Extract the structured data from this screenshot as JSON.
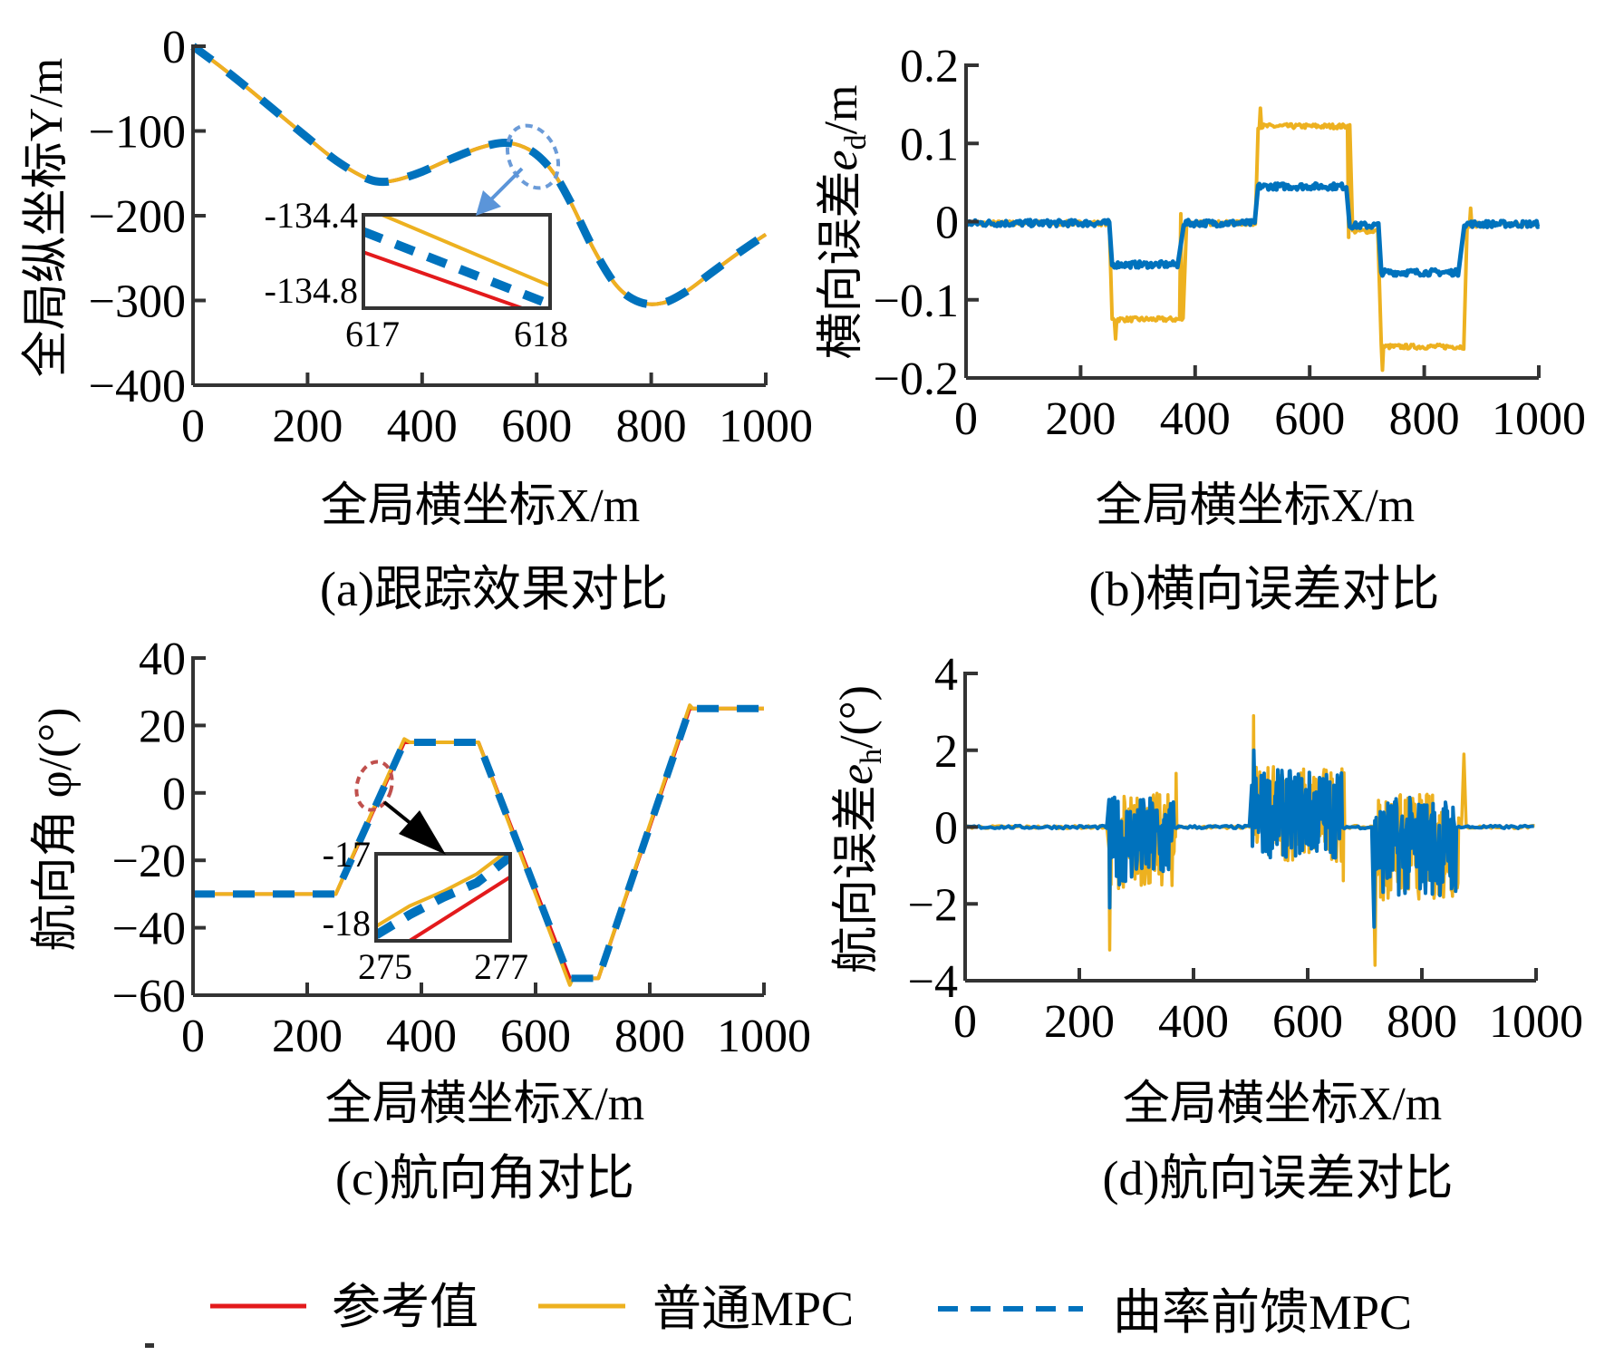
{
  "colors": {
    "reference": "#e31a1c",
    "normal_mpc": "#edb120",
    "curvature_mpc": "#0072bd",
    "axis": "#333333",
    "ellipse_a": "#6b9bd8",
    "arrow_a": "#5b95d9",
    "ellipse_c": "#c0504d",
    "arrow_c": "#000000"
  },
  "legend": {
    "items": [
      {
        "label": "参考值",
        "style": "solid",
        "color_key": "reference"
      },
      {
        "label": "普通MPC",
        "style": "solid",
        "color_key": "normal_mpc"
      },
      {
        "label": "曲率前馈MPC",
        "style": "dashed",
        "color_key": "curvature_mpc"
      }
    ],
    "placement": "bottom-center"
  },
  "chart_data": [
    {
      "id": "a",
      "type": "line",
      "caption": "(a)跟踪效果对比",
      "xlabel": "全局横坐标X/m",
      "ylabel": "全局纵坐标Y/m",
      "xlim": [
        0,
        1000
      ],
      "ylim": [
        -400,
        0
      ],
      "xticks": [
        0,
        200,
        400,
        600,
        800,
        1000
      ],
      "xtick_labels": [
        "0",
        "200",
        "400",
        "600",
        "800",
        "1000"
      ],
      "yticks": [
        0,
        -100,
        -200,
        -300,
        -400
      ],
      "ytick_labels": [
        "0",
        "−100",
        "−200",
        "−300",
        "−400"
      ],
      "grid": false,
      "series": [
        {
          "name": "参考值",
          "color_key": "reference",
          "style": "solid",
          "x": [
            0,
            50,
            100,
            150,
            200,
            250,
            300,
            330,
            360,
            400,
            450,
            500,
            540,
            570,
            600,
            630,
            660,
            700,
            740,
            780,
            820,
            860,
            900,
            950,
            1000
          ],
          "y": [
            0,
            -25,
            -52,
            -80,
            -108,
            -135,
            -155,
            -160,
            -157,
            -148,
            -133,
            -120,
            -114,
            -117,
            -128,
            -150,
            -185,
            -240,
            -283,
            -302,
            -303,
            -290,
            -270,
            -245,
            -222
          ]
        },
        {
          "name": "普通MPC",
          "color_key": "normal_mpc",
          "style": "solid",
          "x": [
            0,
            50,
            100,
            150,
            200,
            250,
            300,
            330,
            360,
            400,
            450,
            500,
            540,
            570,
            600,
            630,
            660,
            700,
            740,
            780,
            820,
            860,
            900,
            950,
            1000
          ],
          "y": [
            0,
            -25,
            -52,
            -80,
            -108,
            -135,
            -155,
            -160,
            -157,
            -148,
            -133,
            -120,
            -114,
            -117,
            -128,
            -150,
            -185,
            -240,
            -283,
            -302,
            -303,
            -290,
            -270,
            -245,
            -222
          ]
        },
        {
          "name": "曲率前馈MPC",
          "color_key": "curvature_mpc",
          "style": "dashed",
          "x": [
            0,
            50,
            100,
            150,
            200,
            250,
            300,
            330,
            360,
            400,
            450,
            500,
            540,
            570,
            600,
            630,
            660,
            700,
            740,
            780,
            820,
            860,
            900,
            950,
            1000
          ],
          "y": [
            0,
            -25,
            -52,
            -80,
            -108,
            -135,
            -155,
            -160,
            -157,
            -148,
            -133,
            -120,
            -114,
            -117,
            -128,
            -150,
            -185,
            -240,
            -283,
            -302,
            -303,
            -290,
            -270,
            -245,
            -222
          ]
        }
      ],
      "inset": {
        "xlim": [
          617,
          618
        ],
        "ylim": [
          -134.85,
          -134.35
        ],
        "xtick_labels": [
          "617",
          "618"
        ],
        "ytick_labels": [
          "-134.4",
          "-134.8"
        ],
        "series": [
          {
            "color_key": "reference",
            "style": "solid",
            "x": [
              617,
              617.85
            ],
            "y": [
              -134.55,
              -134.85
            ]
          },
          {
            "color_key": "normal_mpc",
            "style": "solid",
            "x": [
              617.1,
              618
            ],
            "y": [
              -134.35,
              -134.73
            ]
          },
          {
            "color_key": "curvature_mpc",
            "style": "dashed",
            "x": [
              617,
              618
            ],
            "y": [
              -134.44,
              -134.83
            ]
          }
        ]
      }
    },
    {
      "id": "b",
      "type": "line",
      "caption": "(b)横向误差对比",
      "xlabel": "全局横坐标X/m",
      "ylabel": "横向误差e_d/m",
      "ylabel_main": "横向误差",
      "ylabel_var": "e",
      "ylabel_sub": "d",
      "ylabel_unit": "/m",
      "xlim": [
        0,
        1000
      ],
      "ylim": [
        -0.2,
        0.2
      ],
      "xticks": [
        0,
        200,
        400,
        600,
        800,
        1000
      ],
      "xtick_labels": [
        "0",
        "200",
        "400",
        "600",
        "800",
        "1000"
      ],
      "yticks": [
        0.2,
        0.1,
        0,
        -0.1,
        -0.2
      ],
      "ytick_labels": [
        "0.2",
        "0.1",
        "0",
        "−0.1",
        "−0.2"
      ],
      "grid": false,
      "series": [
        {
          "name": "普通MPC",
          "color_key": "normal_mpc",
          "segments": [
            [
              0,
              250,
              -0.002
            ],
            [
              255,
              380,
              -0.125
            ],
            [
              385,
              505,
              -0.002
            ],
            [
              510,
              670,
              0.122
            ],
            [
              675,
              720,
              -0.012
            ],
            [
              725,
              870,
              -0.16
            ],
            [
              875,
              1000,
              -0.004
            ]
          ],
          "peaks": [
            [
              262,
              -0.15
            ],
            [
              375,
              0.01
            ],
            [
              515,
              0.145
            ],
            [
              668,
              -0.02
            ],
            [
              728,
              -0.19
            ],
            [
              882,
              0.017
            ]
          ]
        },
        {
          "name": "曲率前馈MPC",
          "color_key": "curvature_mpc",
          "segments": [
            [
              0,
              250,
              -0.002
            ],
            [
              255,
              370,
              -0.055
            ],
            [
              380,
              505,
              -0.002
            ],
            [
              510,
              665,
              0.045
            ],
            [
              670,
              720,
              -0.005
            ],
            [
              725,
              860,
              -0.065
            ],
            [
              870,
              1000,
              -0.003
            ]
          ],
          "peaks": []
        }
      ]
    },
    {
      "id": "c",
      "type": "line",
      "caption": "(c)航向角对比",
      "xlabel": "全局横坐标X/m",
      "ylabel": "航向角 φ/(°)",
      "xlim": [
        0,
        1000
      ],
      "ylim": [
        -60,
        40
      ],
      "xticks": [
        0,
        200,
        400,
        600,
        800,
        1000
      ],
      "xtick_labels": [
        "0",
        "200",
        "400",
        "600",
        "800",
        "1000"
      ],
      "yticks": [
        40,
        20,
        0,
        -20,
        -40,
        -60
      ],
      "ytick_labels": [
        "40",
        "20",
        "0",
        "−20",
        "−40",
        "−60"
      ],
      "grid": false,
      "series": [
        {
          "name": "参考值",
          "color_key": "reference",
          "style": "solid",
          "x": [
            0,
            250,
            370,
            500,
            660,
            710,
            870,
            1000
          ],
          "y": [
            -30,
            -30,
            15,
            15,
            -55,
            -55,
            25,
            25
          ]
        },
        {
          "name": "普通MPC",
          "color_key": "normal_mpc",
          "style": "solid",
          "x": [
            0,
            250,
            370,
            380,
            500,
            660,
            665,
            710,
            870,
            875,
            1000
          ],
          "y": [
            -30,
            -30,
            16,
            15,
            15,
            -57,
            -55,
            -55,
            26,
            25,
            25
          ]
        },
        {
          "name": "曲率前馈MPC",
          "color_key": "curvature_mpc",
          "style": "dashed",
          "x": [
            0,
            250,
            370,
            500,
            660,
            710,
            870,
            1000
          ],
          "y": [
            -30,
            -30,
            15,
            15,
            -55,
            -55,
            25,
            25
          ]
        }
      ],
      "inset": {
        "xlim": [
          275,
          277
        ],
        "ylim": [
          -18.3,
          -16.8
        ],
        "xtick_labels": [
          "275",
          "277"
        ],
        "ytick_labels": [
          "-17",
          "-18"
        ],
        "series": [
          {
            "color_key": "reference",
            "style": "solid",
            "x": [
              275.5,
              277
            ],
            "y": [
              -18.3,
              -17.2
            ]
          },
          {
            "color_key": "normal_mpc",
            "style": "solid",
            "x": [
              275,
              275.5,
              276,
              276.5,
              276.9
            ],
            "y": [
              -18.05,
              -17.7,
              -17.45,
              -17.15,
              -16.8
            ]
          },
          {
            "color_key": "curvature_mpc",
            "style": "dashed",
            "x": [
              275,
              275.5,
              276,
              276.5,
              277
            ],
            "y": [
              -18.2,
              -17.85,
              -17.55,
              -17.3,
              -16.85
            ]
          }
        ]
      }
    },
    {
      "id": "d",
      "type": "line",
      "caption": "(d)航向误差对比",
      "xlabel": "全局横坐标X/m",
      "ylabel": "航向误差e_h/(°)",
      "ylabel_main": "航向误差",
      "ylabel_var": "e",
      "ylabel_sub": "h",
      "ylabel_unit": "/(°)",
      "xlim": [
        0,
        1000
      ],
      "ylim": [
        -4,
        4
      ],
      "xticks": [
        0,
        200,
        400,
        600,
        800,
        1000
      ],
      "xtick_labels": [
        "0",
        "200",
        "400",
        "600",
        "800",
        "1000"
      ],
      "yticks": [
        4,
        2,
        0,
        -2,
        -4
      ],
      "ytick_labels": [
        "4",
        "2",
        "0",
        "−2",
        "−4"
      ],
      "grid": false,
      "series": [
        {
          "name": "普通MPC",
          "color_key": "normal_mpc",
          "bands": [
            [
              250,
              370,
              -1.6,
              0.9
            ],
            [
              500,
              665,
              -0.9,
              1.6
            ],
            [
              715,
              865,
              -1.9,
              0.9
            ]
          ],
          "peaks": [
            [
              253,
              -3.2
            ],
            [
              370,
              1.4
            ],
            [
              505,
              2.9
            ],
            [
              662,
              -1.4
            ],
            [
              717,
              -3.6
            ],
            [
              872,
              1.9
            ]
          ]
        },
        {
          "name": "曲率前馈MPC",
          "color_key": "curvature_mpc",
          "bands": [
            [
              250,
              365,
              -1.5,
              0.8
            ],
            [
              500,
              660,
              -0.8,
              1.5
            ],
            [
              715,
              860,
              -1.8,
              0.8
            ]
          ],
          "peaks": [
            [
              253,
              -2.1
            ],
            [
              505,
              2.0
            ],
            [
              717,
              -2.6
            ]
          ]
        }
      ]
    }
  ]
}
